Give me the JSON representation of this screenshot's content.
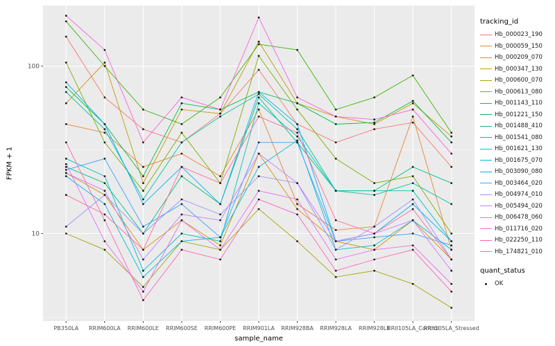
{
  "figure": {
    "background": "#FFFFFF",
    "panel_background": "#EBEBEB",
    "grid_major_color": "#FFFFFF",
    "grid_minor_color": "#FFFFFF",
    "point_color": "#1A1A1A",
    "tick_label_color": "#4D4D4D"
  },
  "axes": {
    "x_title": "sample_name",
    "y_title": "FPKM + 1",
    "y_tick_labels": [
      "100",
      "10"
    ],
    "y_tick_values": [
      100,
      10
    ]
  },
  "legend": {
    "color_title": "tracking_id",
    "shape_title": "quant_status",
    "shape_items": [
      {
        "label": "OK"
      }
    ]
  },
  "chart_data": {
    "type": "line",
    "title": "",
    "xlabel": "sample_name",
    "ylabel": "FPKM + 1",
    "y_scale": "log10",
    "ylim": [
      3,
      230
    ],
    "grid": true,
    "legend_position": "right",
    "x_categories": [
      "PB350LA",
      "RRIM600LA",
      "RRIM600LE",
      "RRIM600SE",
      "RRIM600PE",
      "RRIM901LA",
      "RRIM928BA",
      "RRIM928LA",
      "RRIM928LE",
      "RRII105LA_Control",
      "RRII105LA_Stressed"
    ],
    "minor_grid_values": [
      3.162,
      31.62
    ],
    "series": [
      {
        "name": "Hb_000023_190",
        "color": "#F8766D",
        "values": [
          150,
          65,
          42,
          35,
          52,
          95,
          45,
          35,
          42,
          46,
          25
        ]
      },
      {
        "name": "Hb_000059_150",
        "color": "#EA8331",
        "values": [
          45,
          40,
          25,
          30,
          22,
          55,
          15,
          10.5,
          11,
          50,
          8
        ]
      },
      {
        "name": "Hb_000209_070",
        "color": "#D89000",
        "values": [
          23,
          17,
          8,
          12,
          8.5,
          30,
          14,
          9,
          8,
          12,
          7
        ]
      },
      {
        "name": "Hb_000347_130",
        "color": "#C09B00",
        "values": [
          60,
          105,
          20,
          55,
          52,
          140,
          60,
          50,
          45,
          60,
          38
        ]
      },
      {
        "name": "Hb_000600_070",
        "color": "#A3A500",
        "values": [
          10,
          8,
          4.8,
          9,
          8,
          14,
          9,
          5.5,
          6,
          5,
          3.6
        ]
      },
      {
        "name": "Hb_000613_080",
        "color": "#7CAE00",
        "values": [
          105,
          35,
          18,
          40,
          20,
          115,
          55,
          28,
          20,
          22,
          10
        ]
      },
      {
        "name": "Hb_001143_110",
        "color": "#39B600",
        "values": [
          185,
          100,
          55,
          45,
          65,
          135,
          125,
          55,
          65,
          88,
          40
        ]
      },
      {
        "name": "Hb_001221_150",
        "color": "#00BB4E",
        "values": [
          75,
          45,
          22,
          60,
          55,
          70,
          60,
          45,
          46,
          62,
          35
        ]
      },
      {
        "name": "Hb_001488_410",
        "color": "#00BF7D",
        "values": [
          25,
          20,
          10,
          22,
          15,
          65,
          35,
          18,
          18,
          25,
          20
        ]
      },
      {
        "name": "Hb_001541_080",
        "color": "#00C1A3",
        "values": [
          70,
          42,
          16,
          35,
          50,
          68,
          42,
          18,
          17,
          20,
          15
        ]
      },
      {
        "name": "Hb_001621_130",
        "color": "#00BFC4",
        "values": [
          28,
          22,
          6,
          10,
          9,
          60,
          38,
          18,
          18,
          18,
          9
        ]
      },
      {
        "name": "Hb_001675_070",
        "color": "#00BAE0",
        "values": [
          22,
          15,
          5.5,
          9,
          9.5,
          25,
          36,
          8,
          8.5,
          12,
          8
        ]
      },
      {
        "name": "Hb_003090_080",
        "color": "#00B0F6",
        "values": [
          80,
          45,
          15,
          25,
          15,
          70,
          45,
          9,
          10,
          15,
          9
        ]
      },
      {
        "name": "Hb_003464_020",
        "color": "#35A2FF",
        "values": [
          24,
          28,
          11,
          15,
          9.5,
          35,
          35,
          9,
          9.5,
          10,
          8.5
        ]
      },
      {
        "name": "Hb_004974_010",
        "color": "#9590FF",
        "values": [
          11,
          17,
          10,
          16,
          13,
          22,
          20,
          8,
          11,
          16,
          7
        ]
      },
      {
        "name": "Hb_005494_020",
        "color": "#C77CFF",
        "values": [
          23,
          18,
          7,
          13,
          12,
          30,
          20,
          9,
          10,
          12,
          6
        ]
      },
      {
        "name": "Hb_006478_060",
        "color": "#E76BF3",
        "values": [
          26,
          9,
          4.5,
          12,
          8,
          18,
          16,
          7,
          8,
          8.5,
          5
        ]
      },
      {
        "name": "Hb_011716_020",
        "color": "#FA62DB",
        "values": [
          200,
          125,
          35,
          65,
          55,
          195,
          65,
          50,
          48,
          55,
          30
        ]
      },
      {
        "name": "Hb_022250_110",
        "color": "#FF62BC",
        "values": [
          35,
          12,
          4,
          8,
          7,
          16,
          13,
          6,
          7,
          8,
          4.5
        ]
      },
      {
        "name": "Hb_174821_010",
        "color": "#FF6A98",
        "values": [
          17,
          13,
          8,
          25,
          20,
          50,
          40,
          12,
          10,
          14,
          7
        ]
      }
    ]
  }
}
